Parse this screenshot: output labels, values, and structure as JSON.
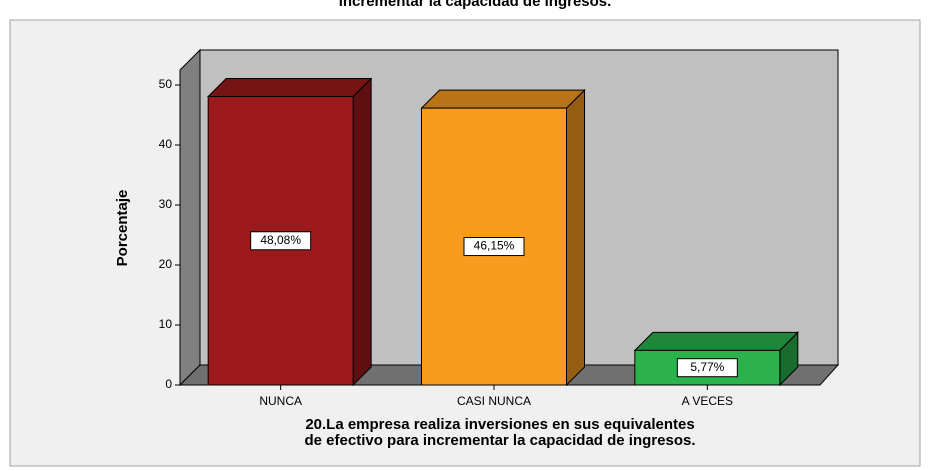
{
  "chart_data": {
    "type": "bar3d",
    "title": "incrementar la capacidad de ingresos.",
    "ylabel": "Porcentaje",
    "xlabel": [
      "20.La empresa realiza inversiones en sus equivalentes",
      "de efectivo para incrementar la capacidad de ingresos."
    ],
    "categories": [
      "NUNCA",
      "CASI NUNCA",
      "A VECES"
    ],
    "values": [
      48.08,
      46.15,
      5.77
    ],
    "value_labels": [
      "48,08%",
      "46,15%",
      "5,77%"
    ],
    "colors": [
      "#9c1a1c",
      "#f89b1e",
      "#2bb24c"
    ],
    "ylim": [
      0,
      52.5
    ],
    "yticks": [
      0,
      10,
      20,
      30,
      40,
      50
    ]
  }
}
